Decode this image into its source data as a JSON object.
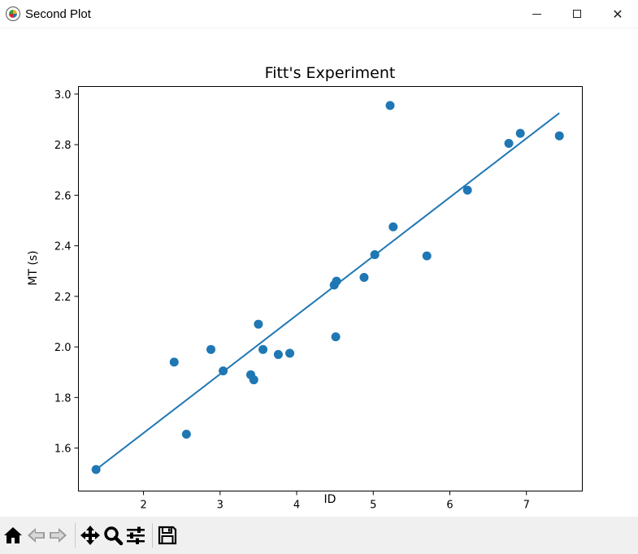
{
  "window": {
    "title": "Second Plot",
    "minimize_icon": "minimize-icon",
    "maximize_icon": "maximize-icon",
    "close_icon": "close-icon",
    "close_glyph": "✕"
  },
  "toolbar": {
    "tools": [
      "home-icon",
      "back-arrow-icon",
      "forward-arrow-icon",
      "pan-icon",
      "zoom-icon",
      "configure-subplots-icon",
      "save-icon"
    ]
  },
  "chart_data": {
    "type": "scatter",
    "title": "Fitt's Experiment",
    "xlabel": "ID",
    "ylabel": "MT (s)",
    "xlim": [
      1.15,
      7.73
    ],
    "ylim": [
      1.43,
      3.03
    ],
    "xticks": [
      2,
      3,
      4,
      5,
      6,
      7
    ],
    "yticks": [
      1.6,
      1.8,
      2.0,
      2.2,
      2.4,
      2.6,
      2.8,
      3.0
    ],
    "ytick_labels": [
      "1.6",
      "1.8",
      "2.0",
      "2.2",
      "2.4",
      "2.6",
      "2.8",
      "3.0"
    ],
    "grid": false,
    "color": "#1f77b4",
    "points": [
      {
        "x": 1.38,
        "y": 1.515
      },
      {
        "x": 2.4,
        "y": 1.94
      },
      {
        "x": 2.56,
        "y": 1.655
      },
      {
        "x": 2.88,
        "y": 1.99
      },
      {
        "x": 3.04,
        "y": 1.905
      },
      {
        "x": 3.4,
        "y": 1.89
      },
      {
        "x": 3.44,
        "y": 1.87
      },
      {
        "x": 3.5,
        "y": 2.09
      },
      {
        "x": 3.56,
        "y": 1.99
      },
      {
        "x": 3.76,
        "y": 1.97
      },
      {
        "x": 3.91,
        "y": 1.975
      },
      {
        "x": 4.49,
        "y": 2.245
      },
      {
        "x": 4.52,
        "y": 2.26
      },
      {
        "x": 4.51,
        "y": 2.04
      },
      {
        "x": 4.88,
        "y": 2.275
      },
      {
        "x": 5.02,
        "y": 2.365
      },
      {
        "x": 5.22,
        "y": 2.955
      },
      {
        "x": 5.26,
        "y": 2.475
      },
      {
        "x": 5.7,
        "y": 2.36
      },
      {
        "x": 6.23,
        "y": 2.62
      },
      {
        "x": 6.77,
        "y": 2.805
      },
      {
        "x": 6.92,
        "y": 2.845
      },
      {
        "x": 7.43,
        "y": 2.835
      }
    ],
    "fit_line": {
      "x": [
        1.38,
        7.43
      ],
      "y": [
        1.515,
        2.925
      ]
    }
  }
}
